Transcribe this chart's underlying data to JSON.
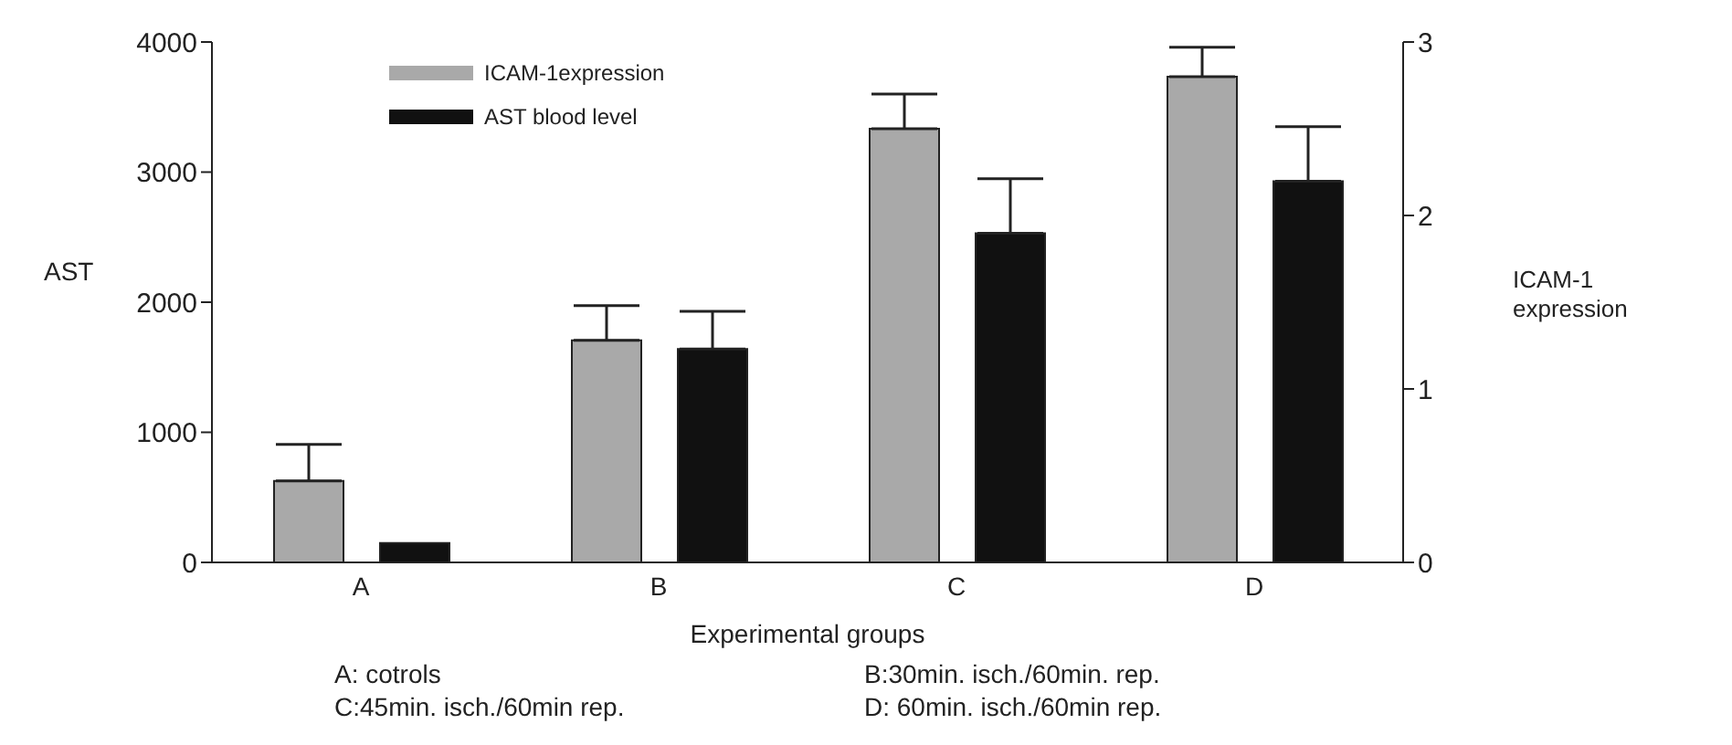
{
  "chart_data": {
    "type": "bar",
    "xlabel": "Experimental groups",
    "ylabel": "AST",
    "y2label": "ICAM-1 expression",
    "categories": [
      "A",
      "B",
      "C",
      "D"
    ],
    "series": [
      {
        "name": "ICAM-1expression",
        "color": "#a9a9a9",
        "axis": "y2",
        "values": [
          0.47,
          1.28,
          2.5,
          2.8
        ],
        "errors": [
          0.21,
          0.2,
          0.2,
          0.17
        ]
      },
      {
        "name": "AST blood level",
        "color": "#111111",
        "values": [
          150,
          1640,
          2530,
          2930
        ],
        "errors": [
          null,
          290,
          420,
          420
        ]
      }
    ],
    "ylim": [
      0,
      4000
    ],
    "yticks": [
      0,
      1000,
      2000,
      3000,
      4000
    ],
    "y2lim": [
      0,
      3
    ],
    "y2ticks": [
      0,
      1,
      2,
      3
    ],
    "legend": "top left",
    "grid": false,
    "annotations": [
      "A: cotrols",
      "B:30min. isch./60min. rep.",
      "C:45min. isch./60min rep.",
      "D: 60min. isch./60min rep."
    ]
  }
}
